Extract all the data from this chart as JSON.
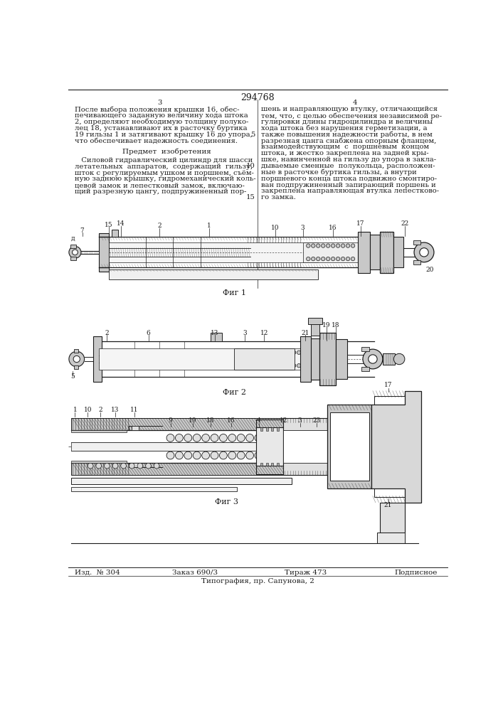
{
  "page_number": "294768",
  "col_left": "3",
  "col_right": "4",
  "line_5": "5",
  "line_10": "10",
  "line_15": "15",
  "text_left_1": "После выбора положения крышки 16, обес-",
  "text_left_2": "печивающего заданную величину хода штока",
  "text_left_3": "2, определяют необходимую толщину полуко-",
  "text_left_4": "лец 18, устанавливают их в расточку буртика",
  "text_left_5": "19 гильзы 1 и затягивают крышку 16 до упора,",
  "text_left_6": "что обеспечивает надежность соединения.",
  "text_predmet": "Предмет  изобретения",
  "text_body_1": "   Силовой гидравлический цилиндр для шасси",
  "text_body_2": "летательных  аппаратов,  содержащий  гильзу,",
  "text_body_3": "шток с регулируемым ушком и поршнем, съём-",
  "text_body_4": "ную заднюю крышку, гидромеханический коль-",
  "text_body_5": "цевой замок и лепестковый замок, включаю-",
  "text_body_6": "щий разрезную цангу, подпружиненный пор-",
  "text_right_1": "шень и направляющую втулку, отличающийся",
  "text_right_2": "тем, что, с целью обеспечения независимой ре-",
  "text_right_3": "гулировки длины гидроцилиндра и величины",
  "text_right_4": "хода штока без нарушения герметизации, а",
  "text_right_5": "также повышения надежности работы, в нем",
  "text_right_6": "разрезная цанга снабжена опорным фланцем,",
  "text_right_7": "взаимодействующим  с  поршневым  концом",
  "text_right_8": "штока, и жестко закреплена на задней кры-",
  "text_right_9": "шке, навинченной на гильзу до упора в закла-",
  "text_right_10": "дываемые сменные  полукольца, расположен-",
  "text_right_11": "ные в расточке буртика гильзы, а внутри",
  "text_right_12": "поршневого конца штока подвижно смонтиро-",
  "text_right_13": "ван подпружиненный запирающий поршень и",
  "text_right_14": "закреплена направляющая втулка лепестково-",
  "text_right_15": "го замка.",
  "fig1_label": "Фиг 1",
  "fig2_label": "Фиг 2",
  "fig3_label": "Фиг 3",
  "footer_left": "Изд.  № 304",
  "footer_mid1": "Заказ 690/3",
  "footer_mid2": "Тираж 473",
  "footer_right": "Подписное",
  "footer_bottom": "Типография, пр. Сапунова, 2",
  "bg_color": "#ffffff",
  "ink": "#1c1c1c",
  "gray_light": "#c8c8c8",
  "gray_mid": "#a0a0a0",
  "gray_dark": "#606060",
  "hatch_color": "#555555"
}
